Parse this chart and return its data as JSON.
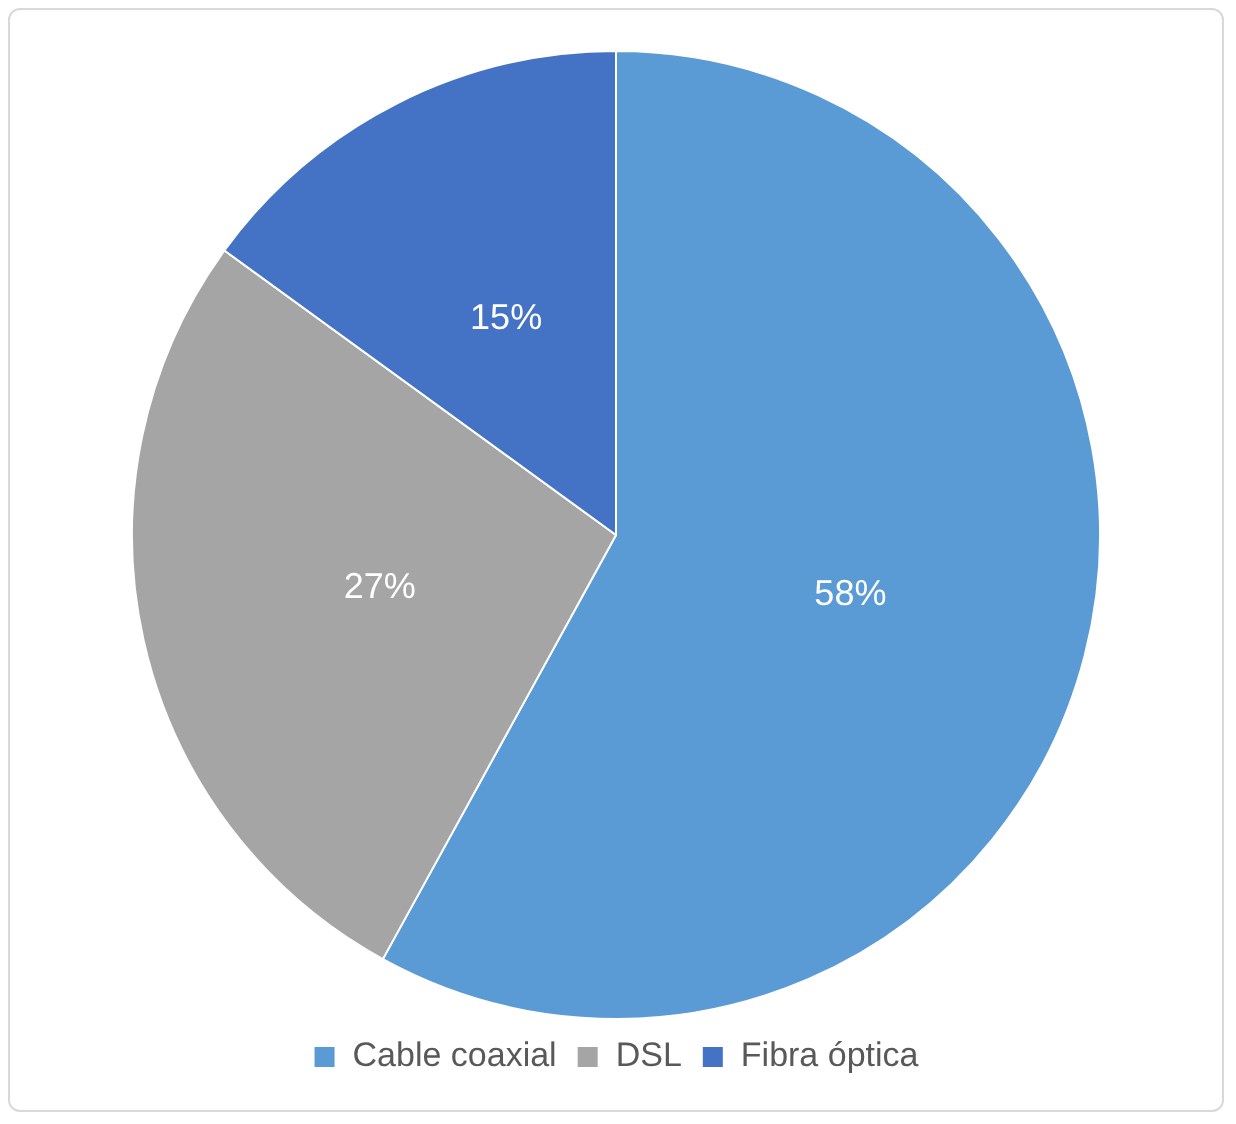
{
  "chart_data": {
    "type": "pie",
    "categories": [
      "Cable coaxial",
      "DSL",
      "Fibra óptica"
    ],
    "values": [
      58,
      27,
      15
    ],
    "colors": [
      "#5b9bd5",
      "#a5a5a5",
      "#4472c4"
    ],
    "value_labels": [
      "58%",
      "27%",
      "15%"
    ],
    "legend": "bottom"
  }
}
